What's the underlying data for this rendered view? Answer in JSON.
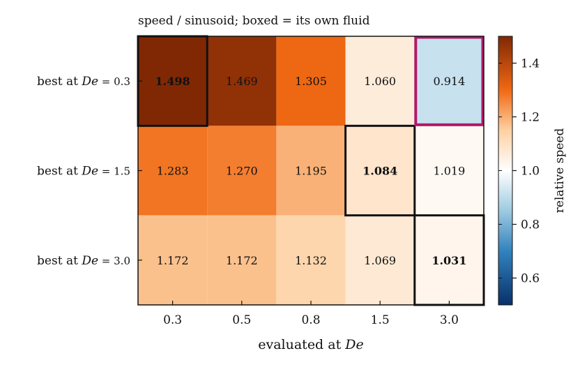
{
  "chart_data": {
    "type": "heatmap",
    "title": "speed / sinusoid; boxed = its own fluid",
    "xlabel": "evaluated at De",
    "x_categories": [
      "0.3",
      "0.5",
      "0.8",
      "1.5",
      "3.0"
    ],
    "y_categories": [
      {
        "text": "best at ",
        "math": "De",
        "suffix": " = 0.3"
      },
      {
        "text": "best at ",
        "math": "De",
        "suffix": " = 1.5"
      },
      {
        "text": "best at ",
        "math": "De",
        "suffix": " = 3.0"
      }
    ],
    "values": [
      [
        1.498,
        1.469,
        1.305,
        1.06,
        0.914
      ],
      [
        1.283,
        1.27,
        1.195,
        1.084,
        1.019
      ],
      [
        1.172,
        1.172,
        1.132,
        1.069,
        1.031
      ]
    ],
    "boxed_cells": [
      [
        0,
        0
      ],
      [
        1,
        3
      ],
      [
        2,
        4
      ]
    ],
    "highlight_cell": [
      0,
      4
    ],
    "highlight_color": "#b0186b",
    "colorbar": {
      "label": "relative speed",
      "min": 0.5,
      "max": 1.5,
      "ticks": [
        "0.6",
        "0.8",
        "1.0",
        "1.2",
        "1.4"
      ],
      "tick_values": [
        0.6,
        0.8,
        1.0,
        1.2,
        1.4
      ],
      "colormap": "diverging blue-white-orange (centered at 1.0)"
    }
  }
}
